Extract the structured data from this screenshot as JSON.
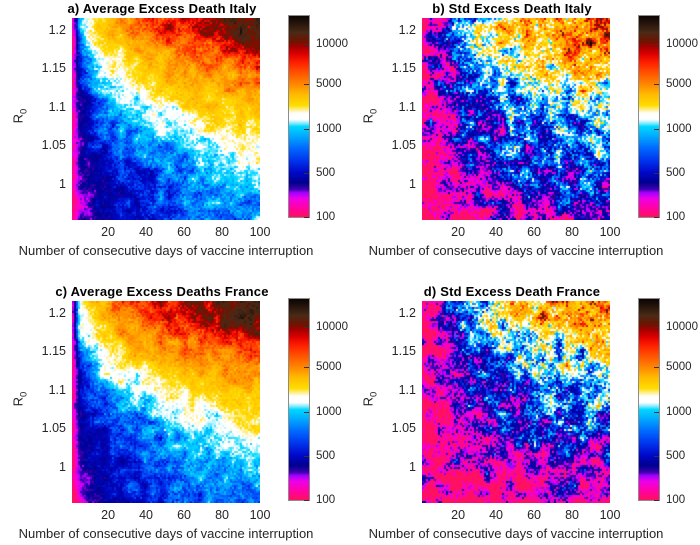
{
  "figure": {
    "background": "#ffffff"
  },
  "axes": {
    "xlabel": "Number of consecutive days of vaccine interruption",
    "ylabel": "R",
    "ylabel_sub": "0",
    "x_ticks": [
      20,
      40,
      60,
      80,
      100
    ],
    "y_ticks": [
      "1.2",
      "1.15",
      "1.1",
      "1.05",
      "1"
    ],
    "y_tick_values": [
      1.2,
      1.15,
      1.1,
      1.05,
      1.0
    ],
    "xlim": [
      1,
      100
    ],
    "ylim": [
      0.954,
      1.216
    ],
    "grid": "off"
  },
  "colorbar": {
    "tick_labels": [
      "10000",
      "5000",
      "1000",
      "500",
      "100"
    ],
    "tick_values": [
      10000,
      5000,
      1000,
      500,
      100
    ],
    "scale": "log-like, equally spaced labeled levels"
  },
  "colormap": {
    "anchor_values": [
      100,
      500,
      1000,
      5000,
      10000,
      25000
    ],
    "anchor_positions": [
      0,
      0.22,
      0.44,
      0.66,
      0.86,
      1
    ],
    "stops": [
      {
        "t": 0.0,
        "c": "#ff1060"
      },
      {
        "t": 0.05,
        "c": "#ff00b0"
      },
      {
        "t": 0.09,
        "c": "#ee00e8"
      },
      {
        "t": 0.12,
        "c": "#a000ff"
      },
      {
        "t": 0.135,
        "c": "#4000b0"
      },
      {
        "t": 0.17,
        "c": "#000090"
      },
      {
        "t": 0.22,
        "c": "#0008c8"
      },
      {
        "t": 0.28,
        "c": "#0034ee"
      },
      {
        "t": 0.34,
        "c": "#0068ff"
      },
      {
        "t": 0.4,
        "c": "#00a8ff"
      },
      {
        "t": 0.45,
        "c": "#00d8ff"
      },
      {
        "t": 0.465,
        "c": "#7ceaff"
      },
      {
        "t": 0.485,
        "c": "#ffffff"
      },
      {
        "t": 0.515,
        "c": "#ffffff"
      },
      {
        "t": 0.535,
        "c": "#ffee88"
      },
      {
        "t": 0.555,
        "c": "#ffdd00"
      },
      {
        "t": 0.61,
        "c": "#ffbb00"
      },
      {
        "t": 0.66,
        "c": "#ff8800"
      },
      {
        "t": 0.72,
        "c": "#ff5200"
      },
      {
        "t": 0.77,
        "c": "#ff2000"
      },
      {
        "t": 0.81,
        "c": "#e00000"
      },
      {
        "t": 0.85,
        "c": "#a30000"
      },
      {
        "t": 0.875,
        "c": "#6e1400"
      },
      {
        "t": 0.92,
        "c": "#4a2a18"
      },
      {
        "t": 0.96,
        "c": "#2a180c"
      },
      {
        "t": 1.0,
        "c": "#0c0604"
      }
    ]
  },
  "chart_data": [
    {
      "type": "heatmap",
      "id": "a",
      "title": "a) Average Excess Death Italy",
      "statistic": "Average",
      "country": "Italy",
      "units": "excess deaths",
      "noise_sigma": 0.22,
      "seed": 11,
      "x_days": [
        1,
        5,
        15,
        25,
        35,
        45,
        55,
        65,
        75,
        85,
        95
      ],
      "y_r0": [
        1.2,
        1.15,
        1.1,
        1.05,
        1.0,
        0.96
      ],
      "values": [
        [
          120,
          900,
          2600,
          4200,
          5600,
          6800,
          8000,
          9000,
          10500,
          12500,
          15000
        ],
        [
          120,
          500,
          1200,
          2000,
          2800,
          3400,
          3900,
          4400,
          4800,
          5300,
          5800
        ],
        [
          120,
          380,
          700,
          950,
          1150,
          1500,
          2000,
          2400,
          2700,
          3000,
          3300
        ],
        [
          120,
          300,
          480,
          620,
          750,
          850,
          950,
          1100,
          1300,
          1600,
          1900
        ],
        [
          110,
          250,
          380,
          480,
          560,
          630,
          700,
          780,
          850,
          950,
          1050
        ],
        [
          100,
          220,
          330,
          420,
          490,
          550,
          610,
          670,
          720,
          780,
          850
        ]
      ]
    },
    {
      "type": "heatmap",
      "id": "b",
      "title": "b) Std Excess Death Italy",
      "statistic": "Std",
      "country": "Italy",
      "units": "excess deaths",
      "noise_sigma": 0.62,
      "seed": 22,
      "x_days": [
        1,
        5,
        15,
        25,
        35,
        45,
        55,
        65,
        75,
        85,
        95
      ],
      "y_r0": [
        1.2,
        1.15,
        1.1,
        1.05,
        1.0,
        0.96
      ],
      "values": [
        [
          110,
          160,
          420,
          1100,
          2300,
          3300,
          4000,
          4600,
          5200,
          6000,
          7000
        ],
        [
          110,
          150,
          350,
          600,
          900,
          1150,
          1450,
          1750,
          2200,
          2800,
          3400
        ],
        [
          105,
          140,
          280,
          430,
          560,
          680,
          780,
          880,
          980,
          1080,
          1200
        ],
        [
          100,
          130,
          200,
          300,
          380,
          450,
          520,
          580,
          640,
          700,
          760
        ],
        [
          100,
          115,
          150,
          210,
          270,
          320,
          370,
          410,
          450,
          490,
          530
        ],
        [
          95,
          105,
          120,
          140,
          160,
          185,
          210,
          240,
          270,
          300,
          330
        ]
      ]
    },
    {
      "type": "heatmap",
      "id": "c",
      "title": "c) Average Excess Deaths France",
      "statistic": "Average",
      "country": "France",
      "units": "excess deaths",
      "noise_sigma": 0.22,
      "seed": 33,
      "x_days": [
        1,
        5,
        15,
        25,
        35,
        45,
        55,
        65,
        75,
        85,
        95
      ],
      "y_r0": [
        1.2,
        1.15,
        1.1,
        1.05,
        1.0,
        0.96
      ],
      "values": [
        [
          130,
          1500,
          3400,
          5000,
          6200,
          7200,
          8200,
          9200,
          10500,
          12500,
          15500
        ],
        [
          130,
          650,
          1500,
          2500,
          3200,
          3800,
          4300,
          4800,
          5300,
          5800,
          6300
        ],
        [
          120,
          430,
          780,
          1020,
          1250,
          1600,
          2050,
          2450,
          2750,
          3050,
          3350
        ],
        [
          120,
          320,
          500,
          660,
          780,
          880,
          980,
          1120,
          1320,
          1620,
          1920
        ],
        [
          110,
          260,
          390,
          490,
          570,
          640,
          710,
          790,
          870,
          960,
          1060
        ],
        [
          100,
          230,
          340,
          430,
          500,
          560,
          620,
          680,
          740,
          800,
          870
        ]
      ]
    },
    {
      "type": "heatmap",
      "id": "d",
      "title": "d) Std Excess Death France",
      "statistic": "Std",
      "country": "France",
      "units": "excess deaths",
      "noise_sigma": 0.68,
      "seed": 44,
      "x_days": [
        1,
        5,
        15,
        25,
        35,
        45,
        55,
        65,
        75,
        85,
        95
      ],
      "y_r0": [
        1.2,
        1.15,
        1.1,
        1.05,
        1.0,
        0.96
      ],
      "values": [
        [
          110,
          150,
          350,
          800,
          1400,
          2200,
          2800,
          3300,
          3800,
          4400,
          5000
        ],
        [
          105,
          140,
          280,
          480,
          700,
          900,
          1050,
          1250,
          1450,
          1700,
          2000
        ],
        [
          100,
          130,
          200,
          320,
          430,
          520,
          600,
          680,
          760,
          840,
          920
        ],
        [
          100,
          115,
          150,
          220,
          290,
          350,
          400,
          450,
          500,
          550,
          600
        ],
        [
          95,
          105,
          120,
          140,
          165,
          190,
          215,
          240,
          265,
          290,
          320
        ],
        [
          95,
          100,
          105,
          112,
          120,
          128,
          136,
          145,
          155,
          165,
          175
        ]
      ]
    }
  ]
}
